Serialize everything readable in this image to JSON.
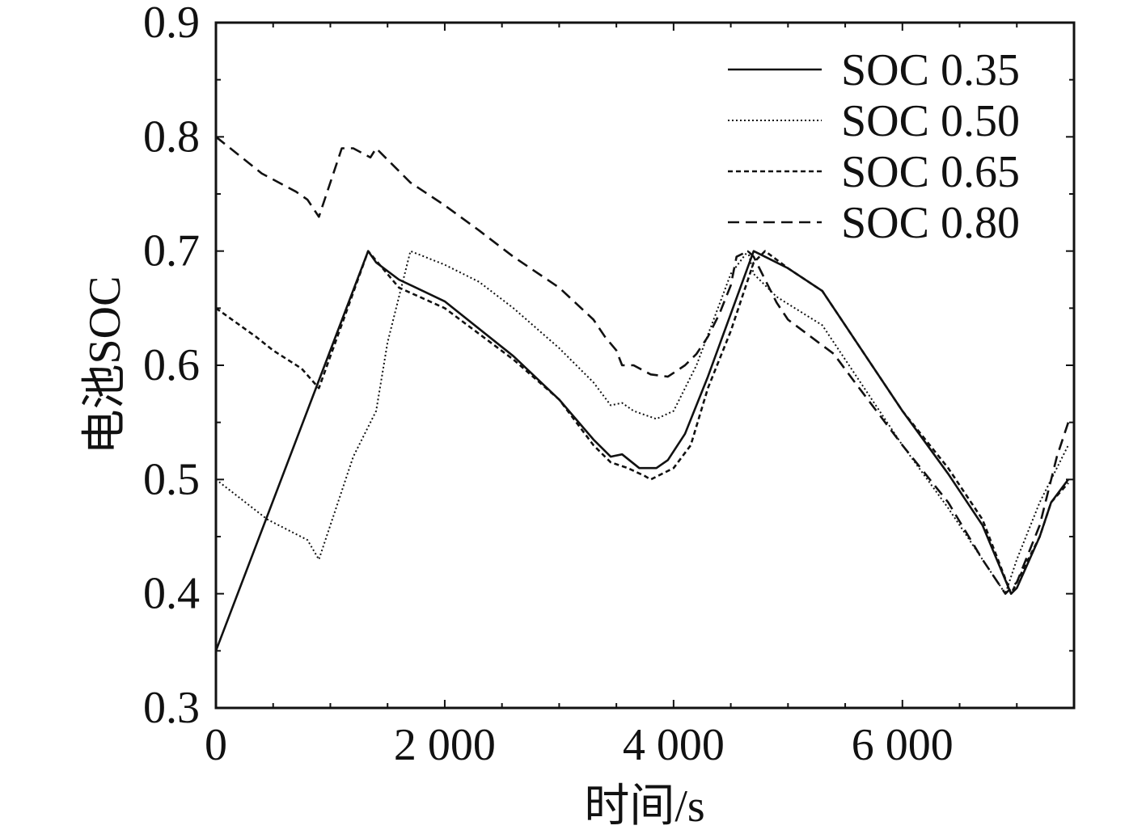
{
  "chart_data": {
    "type": "line",
    "title": "",
    "xlabel": "时间/s",
    "ylabel": "电池SOC",
    "xlim": [
      0,
      7500
    ],
    "ylim": [
      0.3,
      0.9
    ],
    "x_ticks": [
      0,
      2000,
      4000,
      6000
    ],
    "x_tick_labels": [
      "0",
      "2 000",
      "4 000",
      "6 000"
    ],
    "y_ticks": [
      0.3,
      0.4,
      0.5,
      0.6,
      0.7,
      0.8,
      0.9
    ],
    "y_tick_labels": [
      "0.3",
      "0.4",
      "0.5",
      "0.6",
      "0.7",
      "0.8",
      "0.9"
    ],
    "legend_position": "top-right",
    "series": [
      {
        "name": "SOC 0.35",
        "style": "solid",
        "color": "#111111",
        "x": [
          0,
          1330,
          1400,
          1600,
          2000,
          2600,
          3000,
          3300,
          3450,
          3550,
          3700,
          3850,
          3950,
          4100,
          4300,
          4500,
          4700,
          4800,
          5000,
          5300,
          5600,
          6000,
          6400,
          6700,
          6950,
          7000,
          7200,
          7300,
          7450
        ],
        "y": [
          0.35,
          0.7,
          0.69,
          0.675,
          0.656,
          0.608,
          0.57,
          0.535,
          0.52,
          0.522,
          0.51,
          0.51,
          0.517,
          0.54,
          0.59,
          0.645,
          0.7,
          0.695,
          0.685,
          0.665,
          0.62,
          0.56,
          0.505,
          0.46,
          0.4,
          0.405,
          0.45,
          0.48,
          0.5
        ]
      },
      {
        "name": "SOC 0.50",
        "style": "dotted",
        "color": "#111111",
        "x": [
          0,
          450,
          800,
          900,
          1200,
          1400,
          1500,
          1700,
          2000,
          2300,
          2600,
          3000,
          3300,
          3450,
          3550,
          3650,
          3850,
          4000,
          4200,
          4350,
          4500,
          4650,
          4700,
          4900,
          5300,
          5600,
          6000,
          6400,
          6700,
          6900,
          7000,
          7200,
          7450
        ],
        "y": [
          0.5,
          0.465,
          0.447,
          0.43,
          0.52,
          0.56,
          0.62,
          0.7,
          0.688,
          0.673,
          0.65,
          0.615,
          0.585,
          0.565,
          0.567,
          0.56,
          0.553,
          0.56,
          0.6,
          0.64,
          0.68,
          0.7,
          0.68,
          0.66,
          0.635,
          0.59,
          0.53,
          0.475,
          0.43,
          0.4,
          0.43,
          0.48,
          0.53
        ]
      },
      {
        "name": "SOC 0.65",
        "style": "short-dashed",
        "color": "#111111",
        "x": [
          0,
          350,
          500,
          750,
          900,
          1330,
          1600,
          2000,
          2600,
          3000,
          3300,
          3450,
          3600,
          3750,
          3800,
          4000,
          4150,
          4300,
          4500,
          4700,
          4800,
          5000,
          5300,
          5600,
          6000,
          6400,
          6700,
          6950,
          7000,
          7200,
          7300,
          7450
        ],
        "y": [
          0.65,
          0.625,
          0.613,
          0.597,
          0.58,
          0.7,
          0.668,
          0.65,
          0.605,
          0.57,
          0.53,
          0.515,
          0.51,
          0.503,
          0.5,
          0.51,
          0.53,
          0.58,
          0.63,
          0.69,
          0.7,
          0.685,
          0.665,
          0.62,
          0.56,
          0.51,
          0.465,
          0.4,
          0.41,
          0.45,
          0.48,
          0.497
        ]
      },
      {
        "name": "SOC 0.80",
        "style": "dashed",
        "color": "#111111",
        "x": [
          0,
          400,
          700,
          800,
          900,
          1100,
          1200,
          1350,
          1400,
          1700,
          2000,
          2300,
          2600,
          3000,
          3300,
          3400,
          3500,
          3550,
          3650,
          3800,
          3950,
          4100,
          4200,
          4300,
          4400,
          4500,
          4550,
          4650,
          4700,
          4800,
          4900,
          5000,
          5200,
          5400,
          5600,
          6000,
          6400,
          6700,
          6900,
          7000,
          7200,
          7350,
          7450
        ],
        "y": [
          0.8,
          0.768,
          0.752,
          0.745,
          0.73,
          0.79,
          0.79,
          0.782,
          0.79,
          0.76,
          0.74,
          0.718,
          0.695,
          0.668,
          0.64,
          0.625,
          0.613,
          0.6,
          0.6,
          0.592,
          0.59,
          0.6,
          0.61,
          0.625,
          0.645,
          0.67,
          0.695,
          0.7,
          0.695,
          0.675,
          0.655,
          0.64,
          0.625,
          0.61,
          0.583,
          0.53,
          0.48,
          0.43,
          0.4,
          0.41,
          0.46,
          0.52,
          0.55
        ]
      }
    ]
  }
}
